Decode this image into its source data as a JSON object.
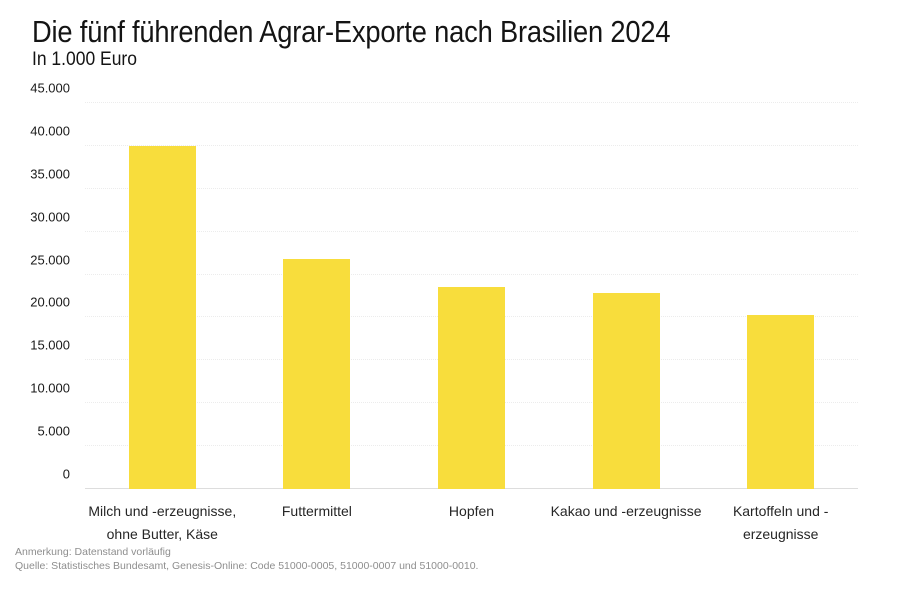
{
  "header": {
    "title": "Die fünf führenden Agrar-Exporte nach Brasilien 2024",
    "subtitle": "In 1.000 Euro"
  },
  "footer": {
    "note": "Anmerkung: Datenstand vorläufig",
    "source": "Quelle: Statistisches Bundesamt, Genesis-Online: Code 51000-0005, 51000-0007 und 51000-0010."
  },
  "chart_data": {
    "type": "bar",
    "title": "Die fünf führenden Agrar-Exporte nach Brasilien 2024",
    "subtitle": "In 1.000 Euro",
    "unit": "1.000 Euro",
    "categories": [
      "Milch und -erzeugnisse, ohne Butter, Käse",
      "Futtermittel",
      "Hopfen",
      "Kakao und -erzeugnisse",
      "Kartoffeln und -erzeugnisse"
    ],
    "category_lines": [
      [
        "Milch und -erzeugnisse,",
        "ohne Butter, Käse"
      ],
      [
        "Futtermittel"
      ],
      [
        "Hopfen"
      ],
      [
        "Kakao und -erzeugnisse"
      ],
      [
        "Kartoffeln und -",
        "erzeugnisse"
      ]
    ],
    "values": [
      40000,
      26800,
      23600,
      22800,
      20300
    ],
    "xlabel": "",
    "ylabel": "",
    "ylim": [
      0,
      45000
    ],
    "ytick_step": 5000,
    "ytick_labels": [
      "0",
      "5.000",
      "10.000",
      "15.000",
      "20.000",
      "25.000",
      "30.000",
      "35.000",
      "40.000",
      "45.000"
    ],
    "grid": true,
    "legend": "none",
    "bar_color": "#F8DD3C"
  },
  "colors": {
    "bar": "#F8DD3C",
    "grid": "#ECECEC",
    "axis": "#DDDDDD",
    "title_text": "#141414",
    "tick_text": "#1A1A1A",
    "category_text": "#262626",
    "footer_text": "#8E8E8E"
  }
}
